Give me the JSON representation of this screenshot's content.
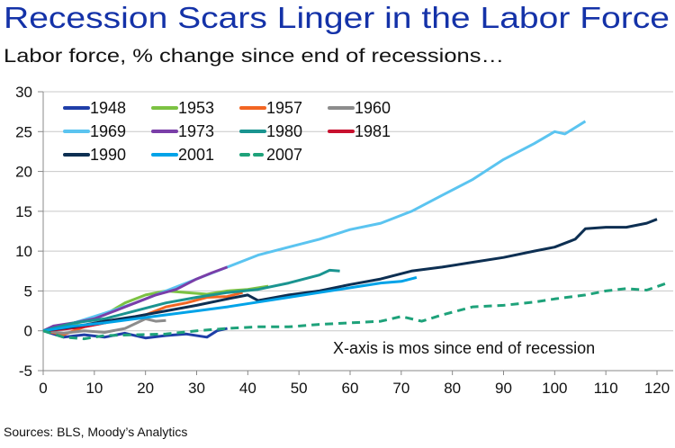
{
  "chart_data": {
    "type": "line",
    "title": "Recession Scars Linger in the Labor Force",
    "subtitle": "Labor force, % change since end of recessions…",
    "annotation": "X-axis is mos since end of recession",
    "source": "Sources: BLS, Moody’s Analytics",
    "xlabel": "",
    "ylabel": "",
    "xlim": [
      0,
      120
    ],
    "ylim": [
      -5,
      30
    ],
    "xticks": [
      0,
      10,
      20,
      30,
      40,
      50,
      60,
      70,
      80,
      90,
      100,
      110,
      120
    ],
    "yticks": [
      -5,
      0,
      5,
      10,
      15,
      20,
      25,
      30
    ],
    "grid": "horizontal",
    "legend_position": "top-left",
    "colors": {
      "title": "#1432a8",
      "grid": "#c8c8c8",
      "axis": "#888888"
    },
    "series": [
      {
        "name": "1948",
        "color": "#1f3ea8",
        "dashed": false,
        "points": [
          [
            0,
            0
          ],
          [
            4,
            -0.8
          ],
          [
            8,
            -0.5
          ],
          [
            12,
            -0.8
          ],
          [
            16,
            -0.3
          ],
          [
            20,
            -0.9
          ],
          [
            24,
            -0.6
          ],
          [
            28,
            -0.4
          ],
          [
            32,
            -0.8
          ],
          [
            34,
            0
          ],
          [
            36,
            0.3
          ]
        ]
      },
      {
        "name": "1953",
        "color": "#7cc242",
        "dashed": false,
        "points": [
          [
            0,
            0
          ],
          [
            4,
            0.5
          ],
          [
            8,
            1.2
          ],
          [
            12,
            2
          ],
          [
            16,
            3.5
          ],
          [
            20,
            4.5
          ],
          [
            24,
            5
          ],
          [
            28,
            4.8
          ],
          [
            32,
            4.6
          ],
          [
            36,
            5
          ],
          [
            40,
            5.2
          ],
          [
            44,
            5.6
          ]
        ]
      },
      {
        "name": "1957",
        "color": "#f26522",
        "dashed": false,
        "points": [
          [
            0,
            0
          ],
          [
            4,
            -0.5
          ],
          [
            8,
            0.5
          ],
          [
            12,
            1
          ],
          [
            16,
            1.5
          ],
          [
            20,
            2
          ],
          [
            24,
            3
          ],
          [
            28,
            3.5
          ],
          [
            32,
            4.2
          ],
          [
            36,
            4.3
          ],
          [
            39,
            4.8
          ]
        ]
      },
      {
        "name": "1960",
        "color": "#8c8c8c",
        "dashed": false,
        "points": [
          [
            0,
            0
          ],
          [
            4,
            -0.3
          ],
          [
            8,
            0
          ],
          [
            12,
            -0.2
          ],
          [
            16,
            0.3
          ],
          [
            20,
            1.5
          ],
          [
            22,
            1.2
          ],
          [
            24,
            1.3
          ]
        ]
      },
      {
        "name": "1969",
        "color": "#5bc4f0",
        "dashed": false,
        "points": [
          [
            0,
            0
          ],
          [
            6,
            1
          ],
          [
            12,
            2.2
          ],
          [
            18,
            3.5
          ],
          [
            24,
            5
          ],
          [
            30,
            6.5
          ],
          [
            36,
            8
          ],
          [
            42,
            9.5
          ],
          [
            48,
            10.5
          ],
          [
            54,
            11.5
          ],
          [
            60,
            12.7
          ],
          [
            66,
            13.5
          ],
          [
            72,
            15
          ],
          [
            78,
            17
          ],
          [
            84,
            19
          ],
          [
            90,
            21.5
          ],
          [
            96,
            23.5
          ],
          [
            100,
            25
          ],
          [
            102,
            24.7
          ],
          [
            106,
            26.3
          ]
        ]
      },
      {
        "name": "1973",
        "color": "#7a3ea8",
        "dashed": false,
        "points": [
          [
            0,
            0
          ],
          [
            2,
            0.6
          ],
          [
            6,
            1
          ],
          [
            10,
            1.5
          ],
          [
            14,
            2.5
          ],
          [
            18,
            3.5
          ],
          [
            22,
            4.5
          ],
          [
            26,
            5.2
          ],
          [
            30,
            6.5
          ],
          [
            33,
            7.3
          ],
          [
            36,
            8
          ]
        ]
      },
      {
        "name": "1980",
        "color": "#1a9490",
        "dashed": false,
        "points": [
          [
            0,
            0
          ],
          [
            6,
            1
          ],
          [
            12,
            1.5
          ],
          [
            18,
            2.5
          ],
          [
            24,
            3.5
          ],
          [
            30,
            4.2
          ],
          [
            36,
            4.8
          ],
          [
            42,
            5.2
          ],
          [
            48,
            6
          ],
          [
            54,
            7
          ],
          [
            56,
            7.6
          ],
          [
            58,
            7.5
          ]
        ]
      },
      {
        "name": "1981",
        "color": "#c8102e",
        "dashed": false,
        "points": [
          [
            0,
            0
          ],
          [
            4,
            0.2
          ],
          [
            8,
            0.5
          ],
          [
            12,
            1
          ],
          [
            15,
            1.5
          ]
        ]
      },
      {
        "name": "1990",
        "color": "#0d2f52",
        "dashed": false,
        "points": [
          [
            0,
            0
          ],
          [
            6,
            0.5
          ],
          [
            12,
            1.2
          ],
          [
            18,
            1.8
          ],
          [
            24,
            2.5
          ],
          [
            30,
            3.2
          ],
          [
            36,
            4
          ],
          [
            40,
            4.5
          ],
          [
            42,
            3.8
          ],
          [
            48,
            4.5
          ],
          [
            54,
            5
          ],
          [
            60,
            5.8
          ],
          [
            66,
            6.5
          ],
          [
            72,
            7.5
          ],
          [
            78,
            8
          ],
          [
            84,
            8.6
          ],
          [
            90,
            9.2
          ],
          [
            96,
            10
          ],
          [
            100,
            10.5
          ],
          [
            104,
            11.5
          ],
          [
            106,
            12.8
          ],
          [
            110,
            13
          ],
          [
            114,
            13
          ],
          [
            118,
            13.5
          ],
          [
            120,
            14
          ]
        ]
      },
      {
        "name": "2001",
        "color": "#00a3e8",
        "dashed": false,
        "points": [
          [
            0,
            0
          ],
          [
            6,
            0.6
          ],
          [
            12,
            1
          ],
          [
            18,
            1.5
          ],
          [
            24,
            2
          ],
          [
            30,
            2.5
          ],
          [
            36,
            3
          ],
          [
            42,
            3.6
          ],
          [
            48,
            4.2
          ],
          [
            54,
            4.8
          ],
          [
            60,
            5.4
          ],
          [
            66,
            6
          ],
          [
            70,
            6.2
          ],
          [
            73,
            6.7
          ]
        ]
      },
      {
        "name": "2007",
        "color": "#1ea27a",
        "dashed": true,
        "points": [
          [
            0,
            0
          ],
          [
            4,
            -0.8
          ],
          [
            8,
            -1
          ],
          [
            12,
            -0.6
          ],
          [
            18,
            -0.5
          ],
          [
            24,
            -0.4
          ],
          [
            30,
            0
          ],
          [
            36,
            0.3
          ],
          [
            42,
            0.5
          ],
          [
            48,
            0.5
          ],
          [
            54,
            0.8
          ],
          [
            60,
            1
          ],
          [
            66,
            1.2
          ],
          [
            70,
            1.8
          ],
          [
            74,
            1.2
          ],
          [
            78,
            2
          ],
          [
            84,
            3
          ],
          [
            90,
            3.2
          ],
          [
            96,
            3.6
          ],
          [
            100,
            4
          ],
          [
            106,
            4.5
          ],
          [
            110,
            5
          ],
          [
            114,
            5.3
          ],
          [
            118,
            5.1
          ],
          [
            122,
            6
          ]
        ]
      }
    ]
  }
}
